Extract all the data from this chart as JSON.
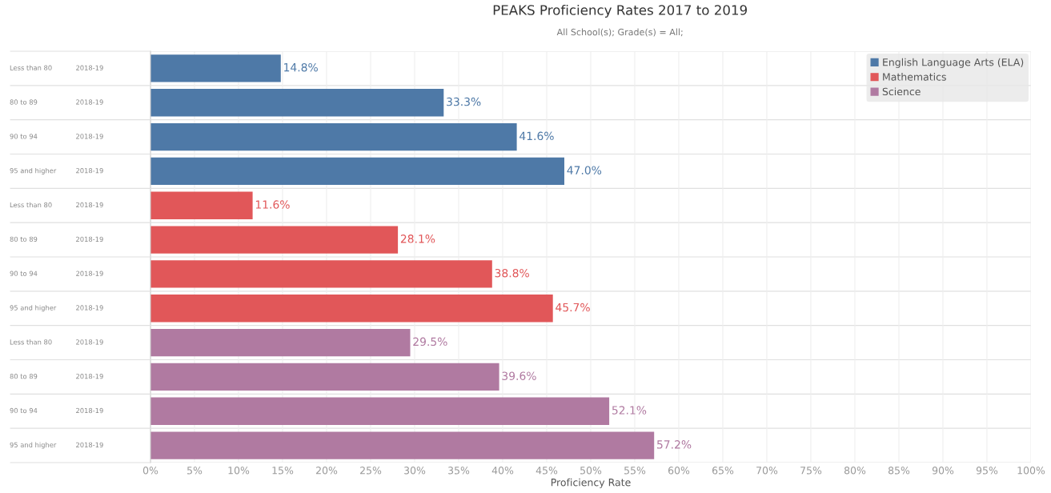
{
  "chart_data": {
    "type": "bar",
    "orientation": "horizontal",
    "title": "PEAKS Proficiency Rates 2017 to 2019",
    "subtitle": "All School(s); Grade(s) = All;",
    "xlabel": "Proficiency Rate",
    "categories": [
      "Less than 80\t2018-19",
      "80 to 89\t2018-19",
      "90 to 94\t2018-19",
      "95 and higher\t2018-19",
      "Less than 80\t2018-19",
      "80 to 89\t2018-19",
      "90 to 94\t2018-19",
      "95 and higher\t2018-19",
      "Less than 80\t2018-19",
      "80 to 89\t2018-19",
      "90 to 94\t2018-19",
      "95 and higher\t2018-19"
    ],
    "series": [
      {
        "name": "English Language Arts (ELA)",
        "color": "#4e79a7",
        "values": [
          14.8,
          33.3,
          41.6,
          47.0,
          null,
          null,
          null,
          null,
          null,
          null,
          null,
          null
        ],
        "value_labels": [
          "14.8%",
          "33.3%",
          "41.6%",
          "47.0%",
          null,
          null,
          null,
          null,
          null,
          null,
          null,
          null
        ]
      },
      {
        "name": "Mathematics",
        "color": "#e15759",
        "values": [
          null,
          null,
          null,
          null,
          11.6,
          28.1,
          38.8,
          45.7,
          null,
          null,
          null,
          null
        ],
        "value_labels": [
          null,
          null,
          null,
          null,
          "11.6%",
          "28.1%",
          "38.8%",
          "45.7%",
          null,
          null,
          null,
          null
        ]
      },
      {
        "name": "Science",
        "color": "#b07aa1",
        "values": [
          null,
          null,
          null,
          null,
          null,
          null,
          null,
          null,
          29.5,
          39.6,
          52.1,
          57.2
        ],
        "value_labels": [
          null,
          null,
          null,
          null,
          null,
          null,
          null,
          null,
          "29.5%",
          "39.6%",
          "52.1%",
          "57.2%"
        ]
      }
    ],
    "xlim": [
      0,
      100
    ],
    "xticks": [
      {
        "value": 0,
        "label": "0%"
      },
      {
        "value": 5,
        "label": "5%"
      },
      {
        "value": 10,
        "label": "10%"
      },
      {
        "value": 15,
        "label": "15%"
      },
      {
        "value": 20,
        "label": "20%"
      },
      {
        "value": 25,
        "label": "25%"
      },
      {
        "value": 30,
        "label": "30%"
      },
      {
        "value": 35,
        "label": "35%"
      },
      {
        "value": 40,
        "label": "40%"
      },
      {
        "value": 45,
        "label": "45%"
      },
      {
        "value": 50,
        "label": "50%"
      },
      {
        "value": 55,
        "label": "55%"
      },
      {
        "value": 60,
        "label": "60%"
      },
      {
        "value": 65,
        "label": "65%"
      },
      {
        "value": 70,
        "label": "70%"
      },
      {
        "value": 75,
        "label": "75%"
      },
      {
        "value": 80,
        "label": "80%"
      },
      {
        "value": 85,
        "label": "85%"
      },
      {
        "value": 90,
        "label": "90%"
      },
      {
        "value": 95,
        "label": "95%"
      },
      {
        "value": 100,
        "label": "100%"
      }
    ],
    "grid": "x",
    "legend": "top right"
  }
}
